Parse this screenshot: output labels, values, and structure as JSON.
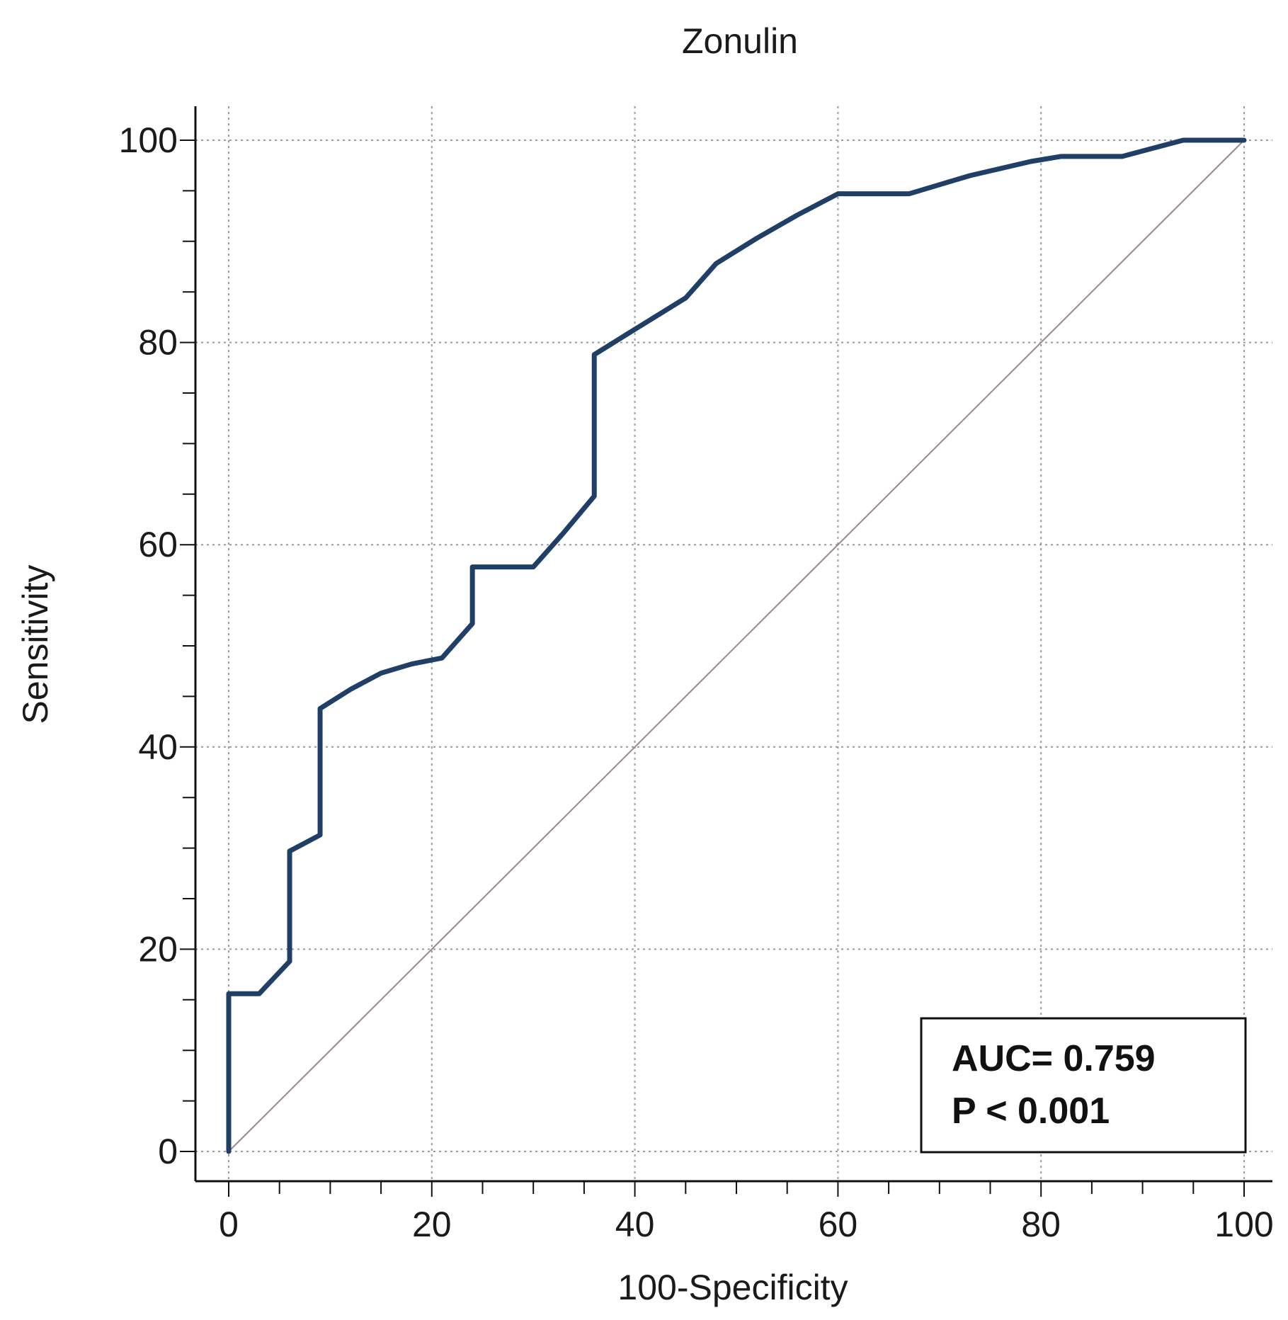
{
  "chart_data": {
    "type": "line",
    "title": "Zonulin",
    "xlabel": "100-Specificity",
    "ylabel": "Sensitivity",
    "xlim": [
      0,
      100
    ],
    "ylim": [
      0,
      100
    ],
    "x_ticks": [
      0,
      20,
      40,
      60,
      80,
      100
    ],
    "y_ticks": [
      0,
      20,
      40,
      60,
      80,
      100
    ],
    "x_minor_step": 5,
    "y_minor_step": 5,
    "grid": true,
    "series": [
      {
        "name": "ROC curve",
        "color": "#1f3f66",
        "x": [
          0,
          0,
          3,
          6,
          6,
          9,
          9,
          12,
          15,
          18,
          21,
          24,
          24,
          30,
          33,
          36,
          36,
          40,
          45,
          48,
          52,
          56,
          60,
          62,
          67,
          70,
          73,
          76,
          79,
          82,
          88,
          91,
          94,
          100
        ],
        "y": [
          0,
          15.6,
          15.6,
          18.8,
          29.7,
          31.3,
          43.8,
          45.7,
          47.3,
          48.2,
          48.8,
          52.2,
          57.8,
          57.8,
          61.2,
          64.8,
          78.8,
          81.3,
          84.4,
          87.8,
          90.3,
          92.6,
          94.7,
          94.7,
          94.7,
          95.6,
          96.5,
          97.2,
          97.9,
          98.4,
          98.4,
          99.2,
          100,
          100
        ]
      },
      {
        "name": "Reference line",
        "color": "#a08686",
        "x": [
          0,
          100
        ],
        "y": [
          0,
          100
        ]
      }
    ],
    "annotation": {
      "lines": [
        "AUC= 0.759",
        "P < 0.001"
      ],
      "placement": "bottom-right"
    }
  }
}
